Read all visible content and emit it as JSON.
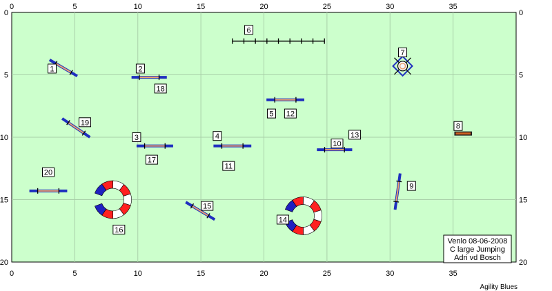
{
  "axis": {
    "x_ticks": [
      "0",
      "5",
      "10",
      "15",
      "20",
      "25",
      "30",
      "35"
    ],
    "y_ticks": [
      "0",
      "5",
      "10",
      "15",
      "20"
    ]
  },
  "colors": {
    "field": "#ccffcc",
    "grid": "#a8cfa8",
    "pole": "#1f2fbf",
    "bar": "#e8a070",
    "tunnel_red": "#ff2020",
    "tunnel_blue": "#2020c0",
    "tunnel_white": "#ffffff",
    "wall": "#d06020"
  },
  "obstacles": [
    {
      "type": "jump",
      "x1": 3.0,
      "y1": 3.8,
      "x2": 5.2,
      "y2": 5.1
    },
    {
      "type": "jump",
      "x1": 9.5,
      "y1": 5.2,
      "x2": 12.3,
      "y2": 5.2
    },
    {
      "type": "jump",
      "x1": 4.0,
      "y1": 8.5,
      "x2": 6.2,
      "y2": 10.0
    },
    {
      "type": "jump",
      "x1": 9.9,
      "y1": 10.7,
      "x2": 12.8,
      "y2": 10.7
    },
    {
      "type": "jump",
      "x1": 16.0,
      "y1": 10.7,
      "x2": 19.0,
      "y2": 10.7
    },
    {
      "type": "jump",
      "x1": 20.2,
      "y1": 7.0,
      "x2": 23.2,
      "y2": 7.0
    },
    {
      "type": "jump",
      "x1": 1.4,
      "y1": 14.3,
      "x2": 4.4,
      "y2": 14.3
    },
    {
      "type": "jump",
      "x1": 13.8,
      "y1": 15.2,
      "x2": 16.1,
      "y2": 16.6
    },
    {
      "type": "jump",
      "x1": 24.2,
      "y1": 11.0,
      "x2": 27.0,
      "y2": 11.0
    },
    {
      "type": "jump",
      "x1": 30.8,
      "y1": 12.9,
      "x2": 30.4,
      "y2": 15.8
    },
    {
      "type": "wall",
      "x1": 35.1,
      "y1": 9.7,
      "x2": 36.5,
      "y2": 9.7
    },
    {
      "type": "long",
      "x1": 17.5,
      "y1": 2.3,
      "x2": 24.8,
      "y2": 2.3
    },
    {
      "type": "tyre",
      "x": 31.0,
      "y": 4.3
    },
    {
      "type": "tunnel",
      "cx": 8.0,
      "cy": 15.0,
      "r": 1.2,
      "gap": "top"
    },
    {
      "type": "tunnel",
      "cx": 23.1,
      "cy": 16.3,
      "r": 1.2,
      "gap": "top"
    }
  ],
  "labels": [
    {
      "text": "1",
      "x": 3.2,
      "y": 4.5
    },
    {
      "text": "2",
      "x": 10.2,
      "y": 4.5
    },
    {
      "text": "3",
      "x": 9.9,
      "y": 10.0
    },
    {
      "text": "4",
      "x": 16.3,
      "y": 9.9
    },
    {
      "text": "5",
      "x": 20.6,
      "y": 8.1
    },
    {
      "text": "6",
      "x": 18.8,
      "y": 1.4
    },
    {
      "text": "7",
      "x": 31.0,
      "y": 3.2
    },
    {
      "text": "8",
      "x": 35.4,
      "y": 9.1
    },
    {
      "text": "9",
      "x": 31.7,
      "y": 13.9
    },
    {
      "text": "10",
      "x": 25.8,
      "y": 10.5
    },
    {
      "text": "11",
      "x": 17.2,
      "y": 12.3
    },
    {
      "text": "12",
      "x": 22.1,
      "y": 8.1
    },
    {
      "text": "13",
      "x": 27.2,
      "y": 9.8
    },
    {
      "text": "14",
      "x": 21.5,
      "y": 16.6
    },
    {
      "text": "15",
      "x": 15.5,
      "y": 15.5
    },
    {
      "text": "16",
      "x": 8.5,
      "y": 17.4
    },
    {
      "text": "17",
      "x": 11.1,
      "y": 11.8
    },
    {
      "text": "18",
      "x": 11.8,
      "y": 6.1
    },
    {
      "text": "19",
      "x": 5.8,
      "y": 8.8
    },
    {
      "text": "20",
      "x": 2.9,
      "y": 12.8
    }
  ],
  "info": {
    "line1": "Venlo 08-06-2008",
    "line2": "C large Jumping",
    "line3": "Adri vd Bosch"
  },
  "credit": "Agility Blues"
}
